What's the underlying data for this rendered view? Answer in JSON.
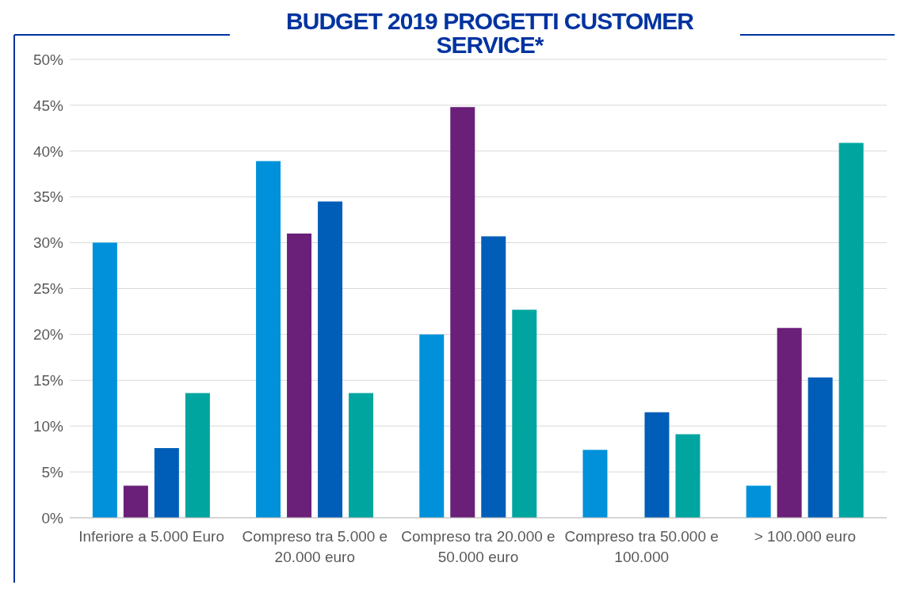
{
  "chart_data": {
    "type": "bar",
    "title": "BUDGET 2019 PROGETTI CUSTOMER SERVICE*",
    "categories": [
      "Inferiore a 5.000 Euro",
      "Compreso tra 5.000 e 20.000 euro",
      "Compreso tra 20.000 e 50.000 euro",
      "Compreso tra 50.000 e 100.000",
      "> 100.000 euro"
    ],
    "series": [
      {
        "color": "#0091da",
        "values": [
          30,
          38.9,
          20,
          7.4,
          3.5
        ]
      },
      {
        "color": "#6a1f78",
        "values": [
          3.5,
          31,
          44.8,
          0,
          20.7
        ]
      },
      {
        "color": "#005eb8",
        "values": [
          7.6,
          34.5,
          30.7,
          11.5,
          15.3
        ]
      },
      {
        "color": "#00a5a0",
        "values": [
          13.6,
          13.6,
          22.7,
          9.1,
          40.9
        ]
      }
    ],
    "ylim": [
      0,
      50
    ],
    "yticks": [
      {
        "value": 0,
        "label": "0%"
      },
      {
        "value": 5,
        "label": "5%"
      },
      {
        "value": 10,
        "label": "10%"
      },
      {
        "value": 15,
        "label": "15%"
      },
      {
        "value": 20,
        "label": "20%"
      },
      {
        "value": 25,
        "label": "25%"
      },
      {
        "value": 30,
        "label": "30%"
      },
      {
        "value": 35,
        "label": "35%"
      },
      {
        "value": 40,
        "label": "40%"
      },
      {
        "value": 45,
        "label": "45%"
      },
      {
        "value": 50,
        "label": "50%"
      }
    ],
    "grid": "y",
    "legend": false
  }
}
